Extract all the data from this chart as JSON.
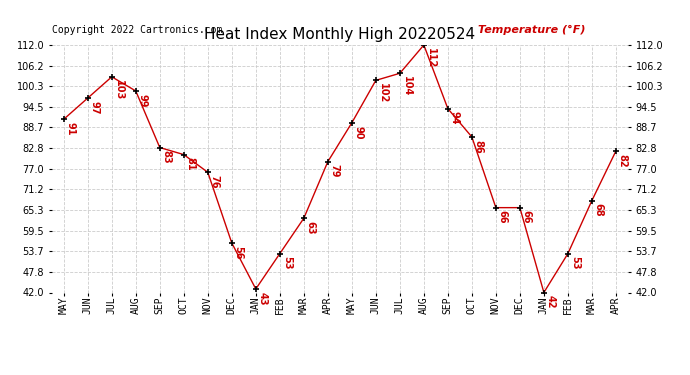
{
  "title": "Heat Index Monthly High 20220524",
  "copyright": "Copyright 2022 Cartronics.com",
  "ylabel": "Temperature (°F)",
  "categories": [
    "MAY",
    "JUN",
    "JUL",
    "AUG",
    "SEP",
    "OCT",
    "NOV",
    "DEC",
    "JAN",
    "FEB",
    "MAR",
    "APR",
    "MAY",
    "JUN",
    "JUL",
    "AUG",
    "SEP",
    "OCT",
    "NOV",
    "DEC",
    "JAN",
    "FEB",
    "MAR",
    "APR"
  ],
  "values": [
    91,
    97,
    103,
    99,
    83,
    81,
    76,
    56,
    43,
    53,
    63,
    79,
    90,
    102,
    104,
    112,
    94,
    86,
    66,
    66,
    42,
    53,
    68,
    82
  ],
  "line_color": "#cc0000",
  "marker_color": "#000000",
  "label_color": "#cc0000",
  "background_color": "#ffffff",
  "grid_color": "#cccccc",
  "title_color": "#000000",
  "copyright_color": "#000000",
  "ylabel_color": "#cc0000",
  "ylim": [
    42.0,
    112.0
  ],
  "yticks": [
    42.0,
    47.8,
    53.7,
    59.5,
    65.3,
    71.2,
    77.0,
    82.8,
    88.7,
    94.5,
    100.3,
    106.2,
    112.0
  ],
  "title_fontsize": 11,
  "label_fontsize": 7,
  "axis_fontsize": 7,
  "copyright_fontsize": 7
}
